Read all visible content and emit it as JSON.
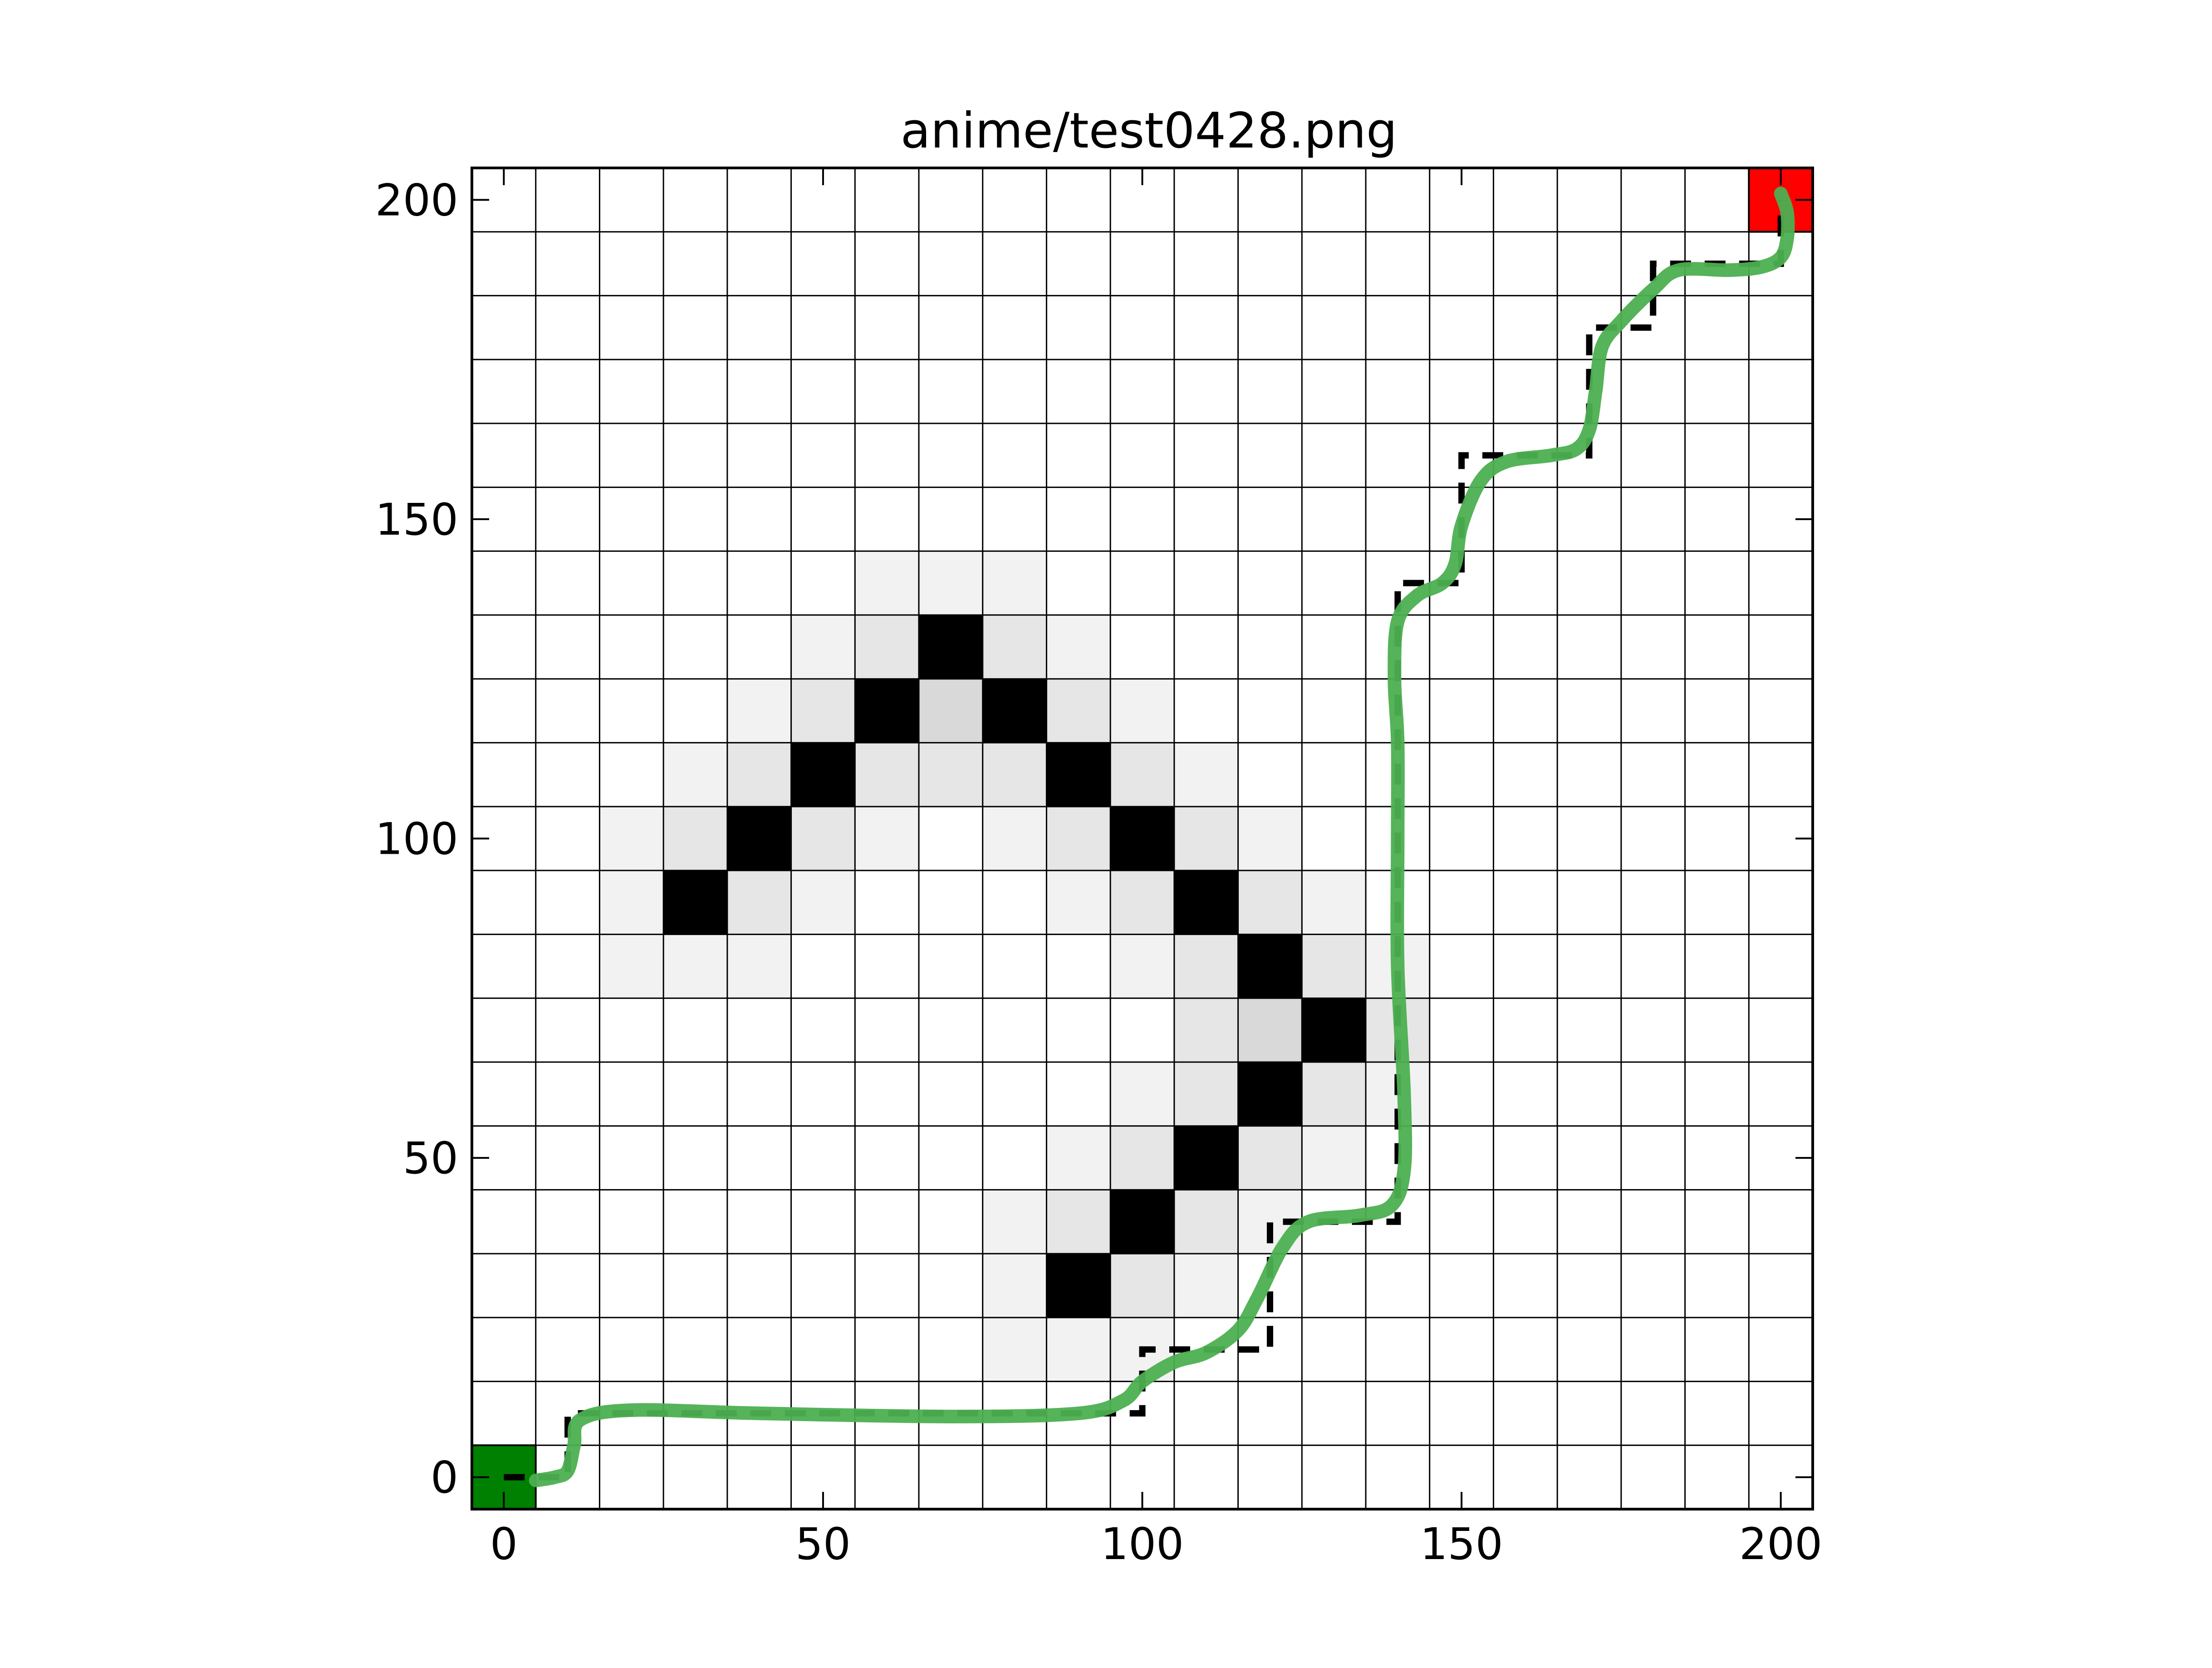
{
  "chart_data": {
    "type": "heatmap",
    "title": "anime/test0428.png",
    "xlabel": "",
    "ylabel": "",
    "xlim": [
      -5,
      205
    ],
    "ylim": [
      -5,
      205
    ],
    "xticks": [
      0,
      50,
      100,
      150,
      200
    ],
    "yticks": [
      0,
      50,
      100,
      150,
      200
    ],
    "grid": true,
    "cell_size": 10,
    "cells": [
      {
        "x": 60,
        "y": 140,
        "v": 0.05
      },
      {
        "x": 70,
        "y": 140,
        "v": 0.05
      },
      {
        "x": 80,
        "y": 140,
        "v": 0.05
      },
      {
        "x": 50,
        "y": 130,
        "v": 0.05
      },
      {
        "x": 60,
        "y": 130,
        "v": 0.1
      },
      {
        "x": 70,
        "y": 130,
        "v": 1
      },
      {
        "x": 80,
        "y": 130,
        "v": 0.1
      },
      {
        "x": 90,
        "y": 130,
        "v": 0.05
      },
      {
        "x": 40,
        "y": 120,
        "v": 0.05
      },
      {
        "x": 50,
        "y": 120,
        "v": 0.1
      },
      {
        "x": 60,
        "y": 120,
        "v": 1
      },
      {
        "x": 70,
        "y": 120,
        "v": 0.15
      },
      {
        "x": 80,
        "y": 120,
        "v": 1
      },
      {
        "x": 90,
        "y": 120,
        "v": 0.1
      },
      {
        "x": 100,
        "y": 120,
        "v": 0.05
      },
      {
        "x": 30,
        "y": 110,
        "v": 0.05
      },
      {
        "x": 40,
        "y": 110,
        "v": 0.1
      },
      {
        "x": 50,
        "y": 110,
        "v": 1
      },
      {
        "x": 60,
        "y": 110,
        "v": 0.1
      },
      {
        "x": 70,
        "y": 110,
        "v": 0.1
      },
      {
        "x": 80,
        "y": 110,
        "v": 0.1
      },
      {
        "x": 90,
        "y": 110,
        "v": 1
      },
      {
        "x": 100,
        "y": 110,
        "v": 0.1
      },
      {
        "x": 110,
        "y": 110,
        "v": 0.05
      },
      {
        "x": 20,
        "y": 100,
        "v": 0.05
      },
      {
        "x": 30,
        "y": 100,
        "v": 0.1
      },
      {
        "x": 40,
        "y": 100,
        "v": 1
      },
      {
        "x": 50,
        "y": 100,
        "v": 0.1
      },
      {
        "x": 60,
        "y": 100,
        "v": 0.05
      },
      {
        "x": 80,
        "y": 100,
        "v": 0.05
      },
      {
        "x": 90,
        "y": 100,
        "v": 0.1
      },
      {
        "x": 100,
        "y": 100,
        "v": 1
      },
      {
        "x": 110,
        "y": 100,
        "v": 0.1
      },
      {
        "x": 120,
        "y": 100,
        "v": 0.05
      },
      {
        "x": 20,
        "y": 90,
        "v": 0.05
      },
      {
        "x": 30,
        "y": 90,
        "v": 1
      },
      {
        "x": 40,
        "y": 90,
        "v": 0.1
      },
      {
        "x": 50,
        "y": 90,
        "v": 0.05
      },
      {
        "x": 90,
        "y": 90,
        "v": 0.05
      },
      {
        "x": 100,
        "y": 90,
        "v": 0.1
      },
      {
        "x": 110,
        "y": 90,
        "v": 1
      },
      {
        "x": 120,
        "y": 90,
        "v": 0.1
      },
      {
        "x": 130,
        "y": 90,
        "v": 0.05
      },
      {
        "x": 20,
        "y": 80,
        "v": 0.05
      },
      {
        "x": 30,
        "y": 80,
        "v": 0.05
      },
      {
        "x": 40,
        "y": 80,
        "v": 0.05
      },
      {
        "x": 100,
        "y": 80,
        "v": 0.05
      },
      {
        "x": 110,
        "y": 80,
        "v": 0.1
      },
      {
        "x": 120,
        "y": 80,
        "v": 1
      },
      {
        "x": 130,
        "y": 80,
        "v": 0.1
      },
      {
        "x": 140,
        "y": 80,
        "v": 0.05
      },
      {
        "x": 110,
        "y": 70,
        "v": 0.1
      },
      {
        "x": 120,
        "y": 70,
        "v": 0.15
      },
      {
        "x": 130,
        "y": 70,
        "v": 1
      },
      {
        "x": 140,
        "y": 70,
        "v": 0.1
      },
      {
        "x": 100,
        "y": 60,
        "v": 0.05
      },
      {
        "x": 110,
        "y": 60,
        "v": 0.1
      },
      {
        "x": 120,
        "y": 60,
        "v": 1
      },
      {
        "x": 130,
        "y": 60,
        "v": 0.1
      },
      {
        "x": 140,
        "y": 60,
        "v": 0.05
      },
      {
        "x": 90,
        "y": 50,
        "v": 0.05
      },
      {
        "x": 100,
        "y": 50,
        "v": 0.1
      },
      {
        "x": 110,
        "y": 50,
        "v": 1
      },
      {
        "x": 120,
        "y": 50,
        "v": 0.1
      },
      {
        "x": 130,
        "y": 50,
        "v": 0.05
      },
      {
        "x": 80,
        "y": 40,
        "v": 0.05
      },
      {
        "x": 90,
        "y": 40,
        "v": 0.1
      },
      {
        "x": 100,
        "y": 40,
        "v": 1
      },
      {
        "x": 110,
        "y": 40,
        "v": 0.1
      },
      {
        "x": 120,
        "y": 40,
        "v": 0.05
      },
      {
        "x": 80,
        "y": 30,
        "v": 0.05
      },
      {
        "x": 90,
        "y": 30,
        "v": 1
      },
      {
        "x": 100,
        "y": 30,
        "v": 0.1
      },
      {
        "x": 110,
        "y": 30,
        "v": 0.05
      },
      {
        "x": 80,
        "y": 20,
        "v": 0.05
      },
      {
        "x": 90,
        "y": 20,
        "v": 0.05
      },
      {
        "x": 100,
        "y": 20,
        "v": 0.05
      }
    ],
    "start": {
      "x": 0,
      "y": 0,
      "color": "#008000"
    },
    "goal": {
      "x": 200,
      "y": 200,
      "color": "#ff0000"
    },
    "series": [
      {
        "type": "step-dashed",
        "color": "#000000",
        "points": [
          [
            0,
            0
          ],
          [
            10,
            0
          ],
          [
            10,
            10
          ],
          [
            100,
            10
          ],
          [
            100,
            20
          ],
          [
            120,
            20
          ],
          [
            120,
            40
          ],
          [
            140,
            40
          ],
          [
            140,
            140
          ],
          [
            150,
            140
          ],
          [
            150,
            160
          ],
          [
            170,
            160
          ],
          [
            170,
            180
          ],
          [
            180,
            180
          ],
          [
            180,
            190
          ],
          [
            200,
            190
          ],
          [
            200,
            200
          ]
        ]
      },
      {
        "type": "smooth",
        "color": "#4caf50",
        "points": [
          [
            5,
            -0.5
          ],
          [
            8,
            0
          ],
          [
            10,
            1
          ],
          [
            11,
            5
          ],
          [
            12,
            9
          ],
          [
            20,
            10.5
          ],
          [
            40,
            10
          ],
          [
            70,
            9.5
          ],
          [
            90,
            10
          ],
          [
            97,
            12
          ],
          [
            100,
            15
          ],
          [
            105,
            18
          ],
          [
            110,
            19.5
          ],
          [
            115,
            23
          ],
          [
            118,
            28
          ],
          [
            122,
            36
          ],
          [
            126,
            40
          ],
          [
            134,
            41
          ],
          [
            139,
            42.5
          ],
          [
            141,
            48
          ],
          [
            141,
            60
          ],
          [
            140,
            80
          ],
          [
            140,
            100
          ],
          [
            140,
            115
          ],
          [
            139.5,
            125
          ],
          [
            140,
            134
          ],
          [
            143,
            138
          ],
          [
            147,
            140
          ],
          [
            149,
            143
          ],
          [
            150,
            149
          ],
          [
            153,
            156
          ],
          [
            157,
            159
          ],
          [
            164,
            160
          ],
          [
            168,
            161
          ],
          [
            170,
            164
          ],
          [
            171,
            170
          ],
          [
            172,
            177
          ],
          [
            175,
            181
          ],
          [
            180,
            186
          ],
          [
            184,
            189
          ],
          [
            192,
            189
          ],
          [
            197,
            189.5
          ],
          [
            200,
            191
          ],
          [
            201,
            194
          ],
          [
            201,
            198
          ],
          [
            200,
            201
          ]
        ]
      }
    ]
  }
}
